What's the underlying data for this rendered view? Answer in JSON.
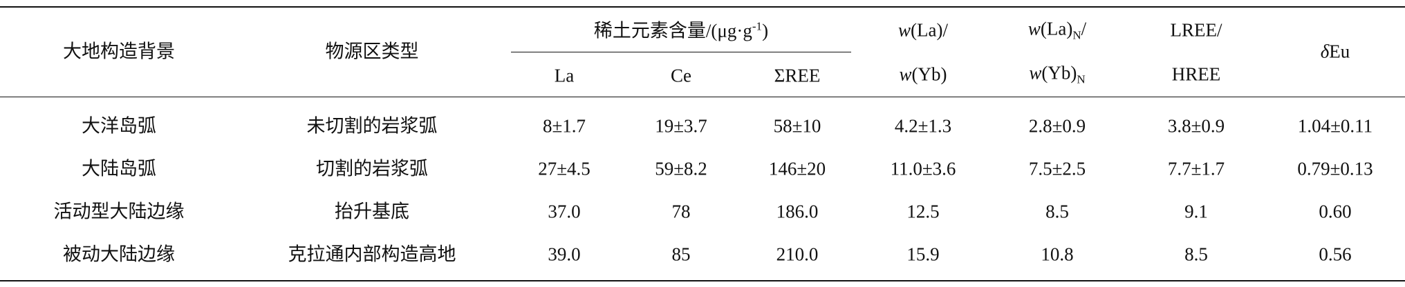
{
  "header": {
    "tectonic_setting": "大地构造背景",
    "source_type": "物源区类型",
    "ree_group": {
      "main": "稀土元素含量/(μg·g",
      "sup": "-1",
      "tail": ")"
    },
    "ree_subs": [
      "La",
      "Ce",
      "ΣREE"
    ],
    "la_yb": [
      "w(La)/",
      "w(Yb)"
    ],
    "la_yb_n": [
      {
        "main": "w(La)",
        "sub": "N",
        "tail": "/"
      },
      {
        "main": "w(Yb)",
        "sub": "N"
      }
    ],
    "lree_hree": [
      "LREE/",
      "HREE"
    ],
    "eu": "δEu"
  },
  "table": {
    "rows": [
      [
        "大洋岛弧",
        "未切割的岩浆弧",
        "8±1.7",
        "19±3.7",
        "58±10",
        "4.2±1.3",
        "2.8±0.9",
        "3.8±0.9",
        "1.04±0.11"
      ],
      [
        "大陆岛弧",
        "切割的岩浆弧",
        "27±4.5",
        "59±8.2",
        "146±20",
        "11.0±3.6",
        "7.5±2.5",
        "7.7±1.7",
        "0.79±0.13"
      ],
      [
        "活动型大陆边缘",
        "抬升基底",
        "37.0",
        "78",
        "186.0",
        "12.5",
        "8.5",
        "9.1",
        "0.60"
      ],
      [
        "被动大陆边缘",
        "克拉通内部构造高地",
        "39.0",
        "85",
        "210.0",
        "15.9",
        "10.8",
        "8.5",
        "0.56"
      ]
    ]
  }
}
